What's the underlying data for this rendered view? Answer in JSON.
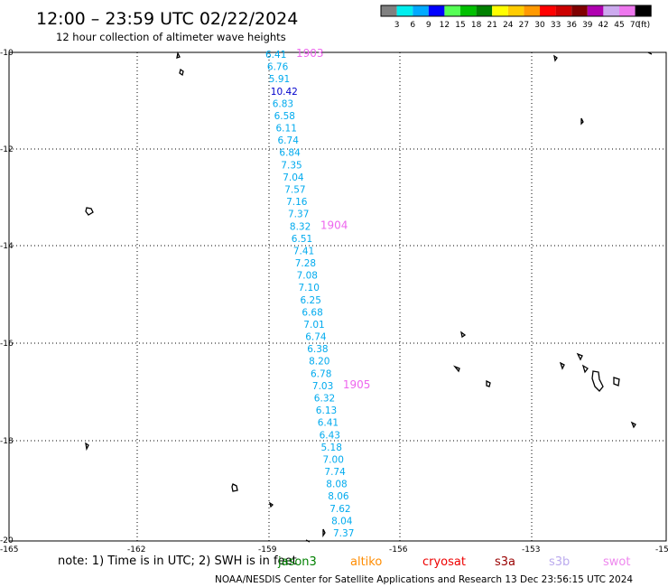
{
  "header": {
    "title": "12:00 – 23:59 UTC 02/22/2024",
    "subtitle": "12 hour collection of altimeter wave heights"
  },
  "legend": {
    "colors": [
      "#808080",
      "#00eeee",
      "#00aaff",
      "#0000ff",
      "#55ff55",
      "#00c000",
      "#008000",
      "#ffff00",
      "#ffcc00",
      "#ff9900",
      "#ff0000",
      "#cc0000",
      "#800000",
      "#b000b0",
      "#ccaaee",
      "#ee77ee",
      "#000000"
    ],
    "labels": [
      "3",
      "6",
      "9",
      "12",
      "15",
      "18",
      "21",
      "24",
      "27",
      "30",
      "33",
      "36",
      "39",
      "42",
      "45",
      "70",
      "(ft)"
    ]
  },
  "axes": {
    "lat_labels": [
      "-10",
      "-12",
      "-14",
      "-16",
      "-18",
      "-20"
    ],
    "lon_labels": [
      "-165",
      "-162",
      "-159",
      "-156",
      "-153",
      "-15"
    ]
  },
  "track": {
    "color": "#00aaee",
    "dark_color": "#0000cc",
    "time_color": "#ee66ee",
    "values": [
      "6.41",
      "6.76",
      "5.91",
      "10.42",
      "6.83",
      "6.58",
      "6.11",
      "6.74",
      "6.84",
      "7.35",
      "7.04",
      "7.57",
      "7.16",
      "7.37",
      "8.32",
      "6.51",
      "7.41",
      "7.28",
      "7.08",
      "7.10",
      "6.25",
      "6.68",
      "7.01",
      "6.74",
      "6.38",
      "8.20",
      "6.78",
      "7.03",
      "6.32",
      "6.13",
      "6.41",
      "6.43",
      "5.18",
      "7.00",
      "7.74",
      "8.08",
      "8.06",
      "7.62",
      "8.04",
      "7.37"
    ],
    "times": [
      "1903",
      "1904",
      "1905"
    ]
  },
  "footer": {
    "note": "note:  1) Time is in UTC; 2) SWH is in feet",
    "satellites": [
      {
        "name": "jason3",
        "color": "#008000"
      },
      {
        "name": "altiko",
        "color": "#ff8c00"
      },
      {
        "name": "cryosat",
        "color": "#ee0000"
      },
      {
        "name": "s3a",
        "color": "#990000"
      },
      {
        "name": "s3b",
        "color": "#bbaaee"
      },
      {
        "name": "swot",
        "color": "#ee88ee"
      }
    ],
    "credit": "NOAA/NESDIS Center for Satellite Applications and Research    13 Dec 23:56:15 UTC 2024"
  }
}
